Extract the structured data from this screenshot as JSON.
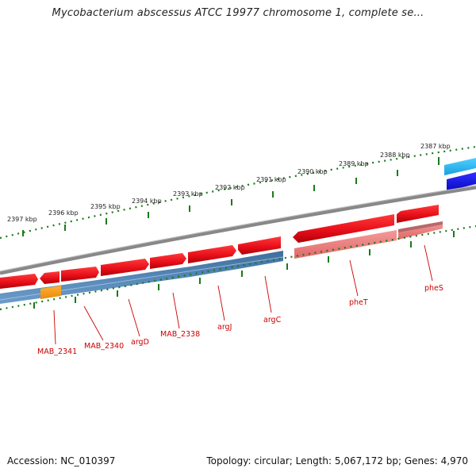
{
  "title": "Mycobacterium abscessus ATCC 19977 chromosome 1, complete se...",
  "footer": {
    "accession": "Accession: NC_010397",
    "summary": "Topology: circular; Length: 5,067,172 bp; Genes: 4,970"
  },
  "colors": {
    "forward_gene": "#e8101a",
    "forward_gene_light": "#f08080",
    "reverse_track": "#4a7fb0",
    "highlight_gene": "#f5a020",
    "cyan_gene": "#28b8ee",
    "blue_gene": "#1a1ae0",
    "backbone": "#888888",
    "tick": "#1a7a1a",
    "label": "#cc0000"
  },
  "scale_labels": [
    "2397 kbp",
    "2396 kbp",
    "2395 kbp",
    "2394 kbp",
    "2393 kbp",
    "2392 kbp",
    "2391 kbp",
    "2390 kbp",
    "2389 kbp",
    "2388 kbp",
    "2387 kbp"
  ],
  "genes": [
    {
      "name": "MAB_2341"
    },
    {
      "name": "MAB_2340"
    },
    {
      "name": "argD"
    },
    {
      "name": "MAB_2338"
    },
    {
      "name": "argJ"
    },
    {
      "name": "argC"
    },
    {
      "name": "pheT"
    },
    {
      "name": "pheS"
    }
  ]
}
